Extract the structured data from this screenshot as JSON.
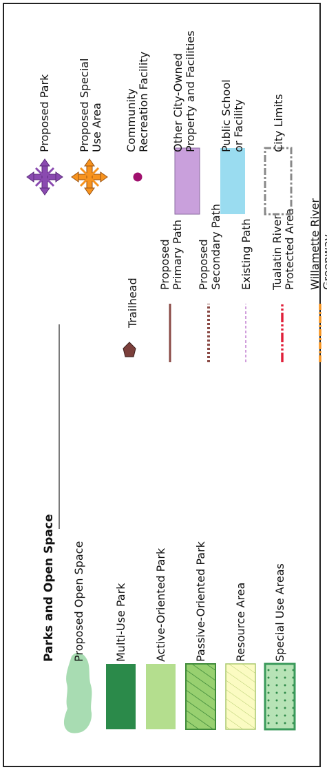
{
  "legend": {
    "title": "Parks and Open Space",
    "parks": [
      {
        "label": "Proposed Open Space",
        "fill": "#a8dcb2"
      },
      {
        "label": "Multi-Use Park",
        "fill": "#2b8a4a"
      },
      {
        "label": "Active-Oriented Park",
        "fill": "#b4de8e"
      },
      {
        "label": "Passive-Oriented Park",
        "fill": "#98d070",
        "stroke": "#3f8a3a"
      },
      {
        "label": "Resource Area",
        "fill": "#fbfbc2",
        "stroke": "#aac86e"
      },
      {
        "label": "Special Use Areas",
        "fill": "#b7e3b6",
        "stroke": "#3a9a5a"
      }
    ],
    "trails": [
      {
        "label_lines": [
          "Trailhead"
        ],
        "color": "#7b3f3b"
      },
      {
        "label_lines": [
          "Proposed",
          "Primary Path"
        ],
        "color": "#8a4a45"
      },
      {
        "label_lines": [
          "Proposed",
          "Secondary Path"
        ],
        "color": "#8a4a45"
      },
      {
        "label_lines": [
          "Existing Path"
        ],
        "color": "#b86ac8"
      },
      {
        "label_lines": [
          "Tualatin River",
          "Protected Area"
        ],
        "color": "#e0203a"
      },
      {
        "label_lines": [
          "Willamette River",
          "Greenway"
        ],
        "color": "#f7931e"
      }
    ],
    "facilities": [
      {
        "label_lines": [
          "Proposed Park"
        ],
        "color": "#8a4ab0"
      },
      {
        "label_lines": [
          "Proposed Special",
          "Use Area"
        ],
        "color": "#f7931e"
      },
      {
        "label_lines": [
          "Community",
          "Recreation Facility"
        ],
        "color": "#a0106e"
      },
      {
        "label_lines": [
          "Other City-Owned",
          "Property and Facilities"
        ],
        "color": "#c9a0dc"
      },
      {
        "label_lines": [
          "Public School",
          "or Facility"
        ],
        "color": "#9adcf0"
      },
      {
        "label_lines": [
          "City Limits"
        ],
        "color": "#888888"
      }
    ]
  }
}
